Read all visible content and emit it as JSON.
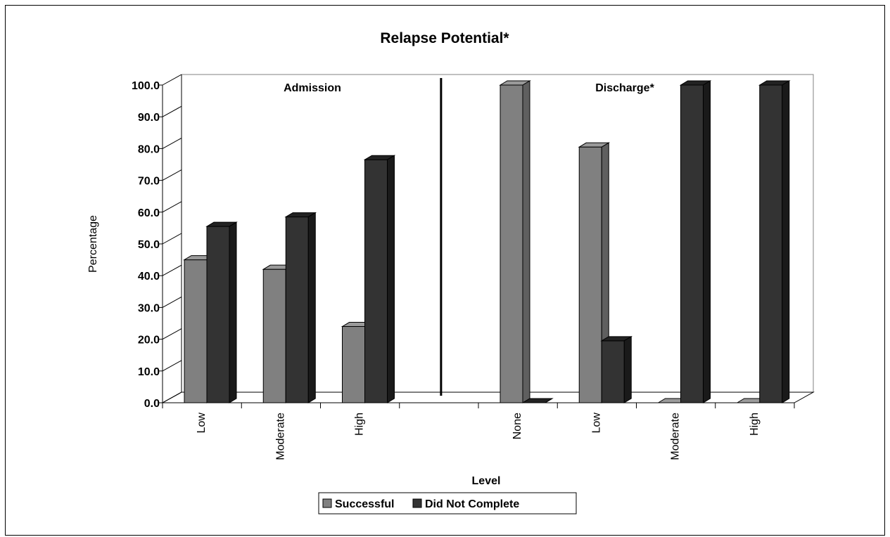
{
  "chart_data": {
    "type": "bar",
    "title": "Relapse Potential*",
    "xlabel": "Level",
    "ylabel": "Percentage",
    "ylim": [
      0,
      100
    ],
    "yticks": [
      "0.0",
      "10.0",
      "20.0",
      "30.0",
      "40.0",
      "50.0",
      "60.0",
      "70.0",
      "80.0",
      "90.0",
      "100.0"
    ],
    "groups": [
      {
        "name": "Admission",
        "categories": [
          "Low",
          "Moderate",
          "High"
        ],
        "series": [
          {
            "name": "Successful",
            "values": [
              45,
              42,
              24
            ]
          },
          {
            "name": "Did Not Complete",
            "values": [
              55.5,
              58.5,
              76.5
            ]
          }
        ]
      },
      {
        "name": "Discharge*",
        "categories": [
          "None",
          "Low",
          "Moderate",
          "High"
        ],
        "series": [
          {
            "name": "Successful",
            "values": [
              100,
              80.5,
              0,
              0
            ]
          },
          {
            "name": "Did Not Complete",
            "values": [
              0,
              19.5,
              100,
              100
            ]
          }
        ]
      }
    ],
    "legend": {
      "placement": "bottom",
      "entries": [
        "Successful",
        "Did Not Complete"
      ]
    },
    "colors": {
      "Successful": "#808080",
      "Did Not Complete": "#333333"
    },
    "grid": false
  }
}
